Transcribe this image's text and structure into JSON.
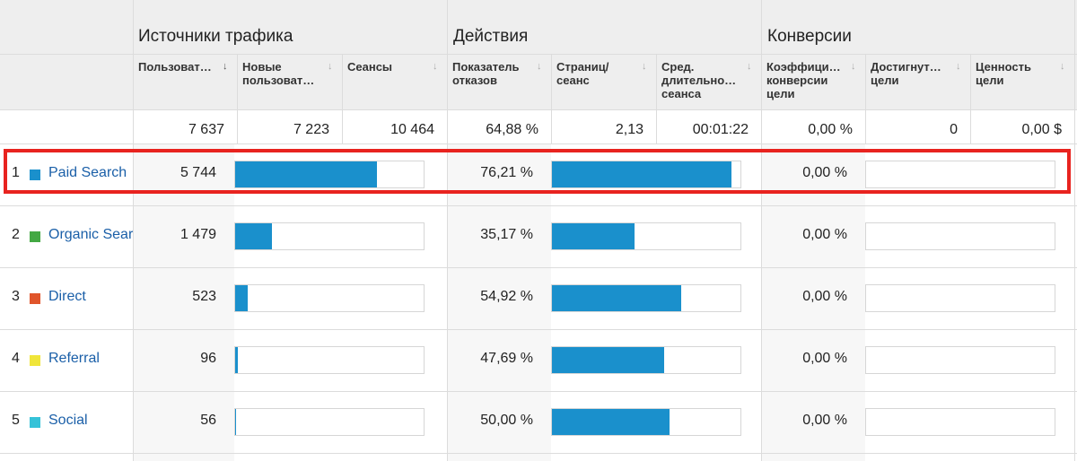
{
  "groups": {
    "traffic": "Источники трафика",
    "actions": "Действия",
    "conversions": "Конверсии"
  },
  "columns": [
    {
      "label": "Пользоват…",
      "sort": "↓"
    },
    {
      "label": "Новые\nпользоват…",
      "sort": "↓"
    },
    {
      "label": "Сеансы",
      "sort": "↓"
    },
    {
      "label": "Показатель\nотказов",
      "sort": "↓"
    },
    {
      "label": "Страниц/\nсеанс",
      "sort": "↓"
    },
    {
      "label": "Сред.\nдлительно…\nсеанса",
      "sort": "↓"
    },
    {
      "label": "Коэффици…\nконверсии\nцели",
      "sort": "↓"
    },
    {
      "label": "Достигнут…\nцели",
      "sort": "↓"
    },
    {
      "label": "Ценность\nцели",
      "sort": "↓"
    }
  ],
  "totals": [
    "7 637",
    "7 223",
    "10 464",
    "64,88 %",
    "2,13",
    "00:01:22",
    "0,00 %",
    "0",
    "0,00 $"
  ],
  "rows": [
    {
      "num": "1",
      "name": "Paid Search",
      "color": "#1a90cc",
      "users": "5 744",
      "users_share": 0.752,
      "bounce": "76,21 %",
      "bounce_share": 0.9525,
      "conv": "0,00 %",
      "conv_share": 0
    },
    {
      "num": "2",
      "name": "Organic Search",
      "color": "#43a843",
      "users": "1 479",
      "users_share": 0.194,
      "bounce": "35,17 %",
      "bounce_share": 0.4395,
      "conv": "0,00 %",
      "conv_share": 0
    },
    {
      "num": "3",
      "name": "Direct",
      "color": "#e0552b",
      "users": "523",
      "users_share": 0.068,
      "bounce": "54,92 %",
      "bounce_share": 0.6865,
      "conv": "0,00 %",
      "conv_share": 0
    },
    {
      "num": "4",
      "name": "Referral",
      "color": "#f0e53a",
      "users": "96",
      "users_share": 0.013,
      "bounce": "47,69 %",
      "bounce_share": 0.596,
      "conv": "0,00 %",
      "conv_share": 0
    },
    {
      "num": "5",
      "name": "Social",
      "color": "#35c2d8",
      "users": "56",
      "users_share": 0.007,
      "bounce": "50,00 %",
      "bounce_share": 0.625,
      "conv": "0,00 %",
      "conv_share": 0
    }
  ]
}
